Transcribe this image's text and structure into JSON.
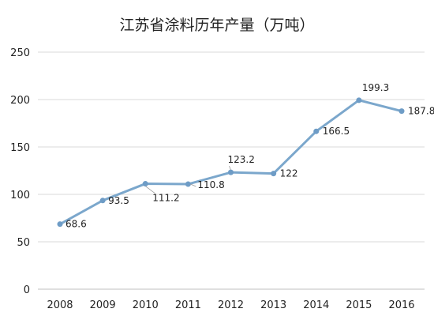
{
  "chart_data": {
    "type": "line",
    "title": "江苏省涂料历年产量（万吨）",
    "xlabel": "",
    "ylabel": "",
    "categories": [
      "2008",
      "2009",
      "2010",
      "2011",
      "2012",
      "2013",
      "2014",
      "2015",
      "2016"
    ],
    "series": [
      {
        "values": [
          68.6,
          93.5,
          111.2,
          110.8,
          123.2,
          122,
          166.5,
          199.3,
          187.8
        ],
        "data_labels": [
          "68.6",
          "93.5",
          "111.2",
          "110.8",
          "123.2",
          "122",
          "166.5",
          "199.3",
          "187.8"
        ],
        "color": "#7ba7cc"
      }
    ],
    "ylim": [
      0,
      250
    ],
    "yticks": [
      "0",
      "50",
      "100",
      "150",
      "200",
      "250"
    ],
    "grid": true,
    "legend": "none"
  },
  "colors": {
    "line": "#7ba7cc",
    "marker": "#6e9cc6",
    "grid": "#d9d9d9",
    "axis": "#bfbfbf",
    "text": "#222222",
    "background": "#ffffff"
  }
}
